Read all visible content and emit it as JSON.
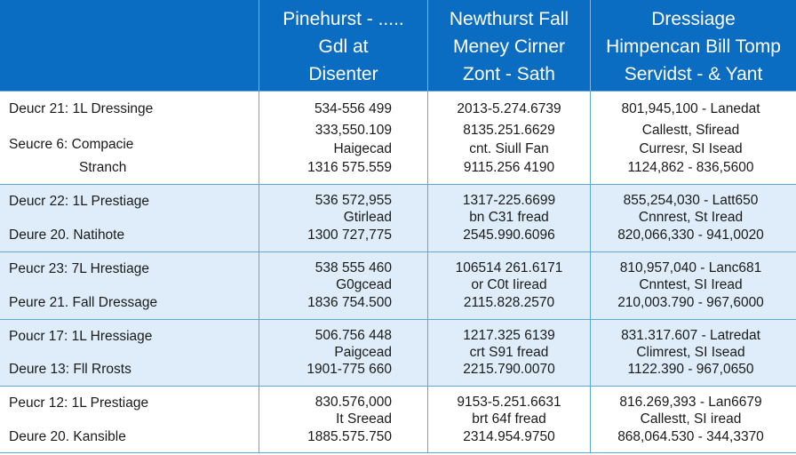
{
  "header": {
    "col1": [
      "Pinehurst - .....",
      "Gdl at",
      "Disenter"
    ],
    "col2": [
      "Newthurst Fall",
      "Meney Cirner",
      "Zont - Sath"
    ],
    "col3": [
      "Dressiage",
      "Himpencan Bill Tomp",
      "Servidst - & Yant"
    ]
  },
  "rows": [
    {
      "labels": [
        "Deucr 21: 1L Dressinge",
        "Seucre 6: Compacie",
        "Stranch"
      ],
      "col1": [
        "534-556 499",
        "333,550.109",
        "Haigecad",
        "1316 575.559"
      ],
      "col2": [
        "2013-5.274.6739",
        "8135.251.6629",
        "cnt. Siull Fan",
        "9115.256 4190"
      ],
      "col3": [
        "801,945,100 - Lanedat",
        "Callestt, Sfiread",
        "Curresr, SI Isead",
        "1124,862 - 836,5600"
      ]
    },
    {
      "labels": [
        "Deucr 22: 1L Prestiage",
        "Deure 20. Natihote"
      ],
      "col1": [
        "536 572,955",
        "Gtirlead",
        "1300 727,775"
      ],
      "col2": [
        "1317-225.6699",
        "bn C31 fread",
        "2545.990.6096"
      ],
      "col3": [
        "855,254,030 - Latt650",
        "Cnnrest, St Iread",
        "820,066,330 - 941,0020"
      ]
    },
    {
      "labels": [
        "Peucr 23: 7L Hrestiage",
        "Peure 21. Fall Dressage"
      ],
      "col1": [
        "538 555 460",
        "G0gcead",
        "1836 754.500"
      ],
      "col2": [
        "106514 261.6171",
        "or C0t Iiread",
        "2115.828.2570"
      ],
      "col3": [
        "810,957,040 - Lanc681",
        "Cnntest, SI Iread",
        "210,003.790 - 967,6000"
      ]
    },
    {
      "labels": [
        "Poucr 17: 1L Hressiage",
        "Deure 13: Fll Rrosts"
      ],
      "col1": [
        "506.756 448",
        "Paigcead",
        "1901-775 660"
      ],
      "col2": [
        "1217.325 6139",
        "crt S91 fread",
        "2215.790.0070"
      ],
      "col3": [
        "831.317.607 - Latredat",
        "Climrest, SI Isead",
        "1122.390 - 967,0650"
      ]
    },
    {
      "labels": [
        "Peucr 12: 1L Prestiage",
        "Deure 20. Kansible"
      ],
      "col1": [
        "830.576,000",
        "It Sreead",
        "1885.575.750"
      ],
      "col2": [
        "9153-5.251.6631",
        "brt 64f fread",
        "2314.954.9750"
      ],
      "col3": [
        "816.269,393 - Lan6679",
        "Callestt, SI iread",
        "868,064.530 - 344,3370"
      ]
    }
  ],
  "colors": {
    "header": "#0b6dc2",
    "row_tint": "#deedf9",
    "grid": "#5fa7d6"
  }
}
